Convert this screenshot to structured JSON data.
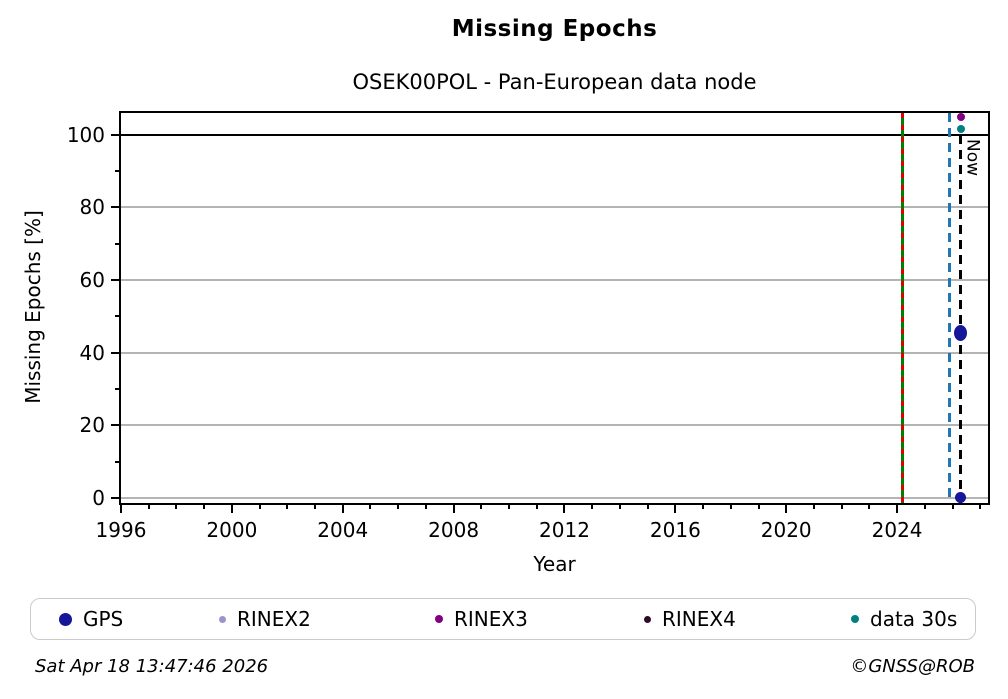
{
  "header": {
    "title": "Missing Epochs",
    "subtitle": "OSEK00POL - Pan-European data node"
  },
  "chart_data": {
    "type": "scatter",
    "title": "Missing Epochs",
    "subtitle": "OSEK00POL - Pan-European data node",
    "xlabel": "Year",
    "ylabel": "Missing Epochs [%]",
    "xlim": [
      1996,
      2027.28
    ],
    "ylim": [
      -1.4,
      106
    ],
    "x_major_ticks": [
      1996,
      2000,
      2004,
      2008,
      2012,
      2016,
      2020,
      2024
    ],
    "y_major_ticks": [
      0,
      20,
      40,
      60,
      80,
      100
    ],
    "y_minor_ticks": [
      10,
      30,
      50,
      70,
      90
    ],
    "grid": "horizontal-only",
    "grid_color": "#b4b4b4",
    "hline": {
      "y": 100,
      "color": "#000000"
    },
    "vlines": [
      {
        "x": 2024.2,
        "style": "solid-with-red-dashes",
        "color": "#008000",
        "overlay_color": "#dd0000",
        "label": ""
      },
      {
        "x": 2025.9,
        "style": "dashed",
        "color": "#1f77b4",
        "label": ""
      },
      {
        "x": 2026.3,
        "style": "dashed",
        "color": "#000000",
        "label": "Now",
        "from_y": 100
      }
    ],
    "now_label": "Now",
    "legend_position": "bottom",
    "series": [
      {
        "name": "GPS",
        "color": "#16169a",
        "legend_marker_size": 13,
        "points": [
          {
            "x": 2026.27,
            "y": 45.5,
            "w": 13,
            "h": 16
          },
          {
            "x": 2026.3,
            "y": 0,
            "w": 11,
            "h": 11
          }
        ]
      },
      {
        "name": "RINEX2",
        "color": "#9a93ce",
        "legend_marker_size": 7,
        "points": []
      },
      {
        "name": "RINEX3",
        "color": "#800080",
        "legend_marker_size": 8,
        "points": [
          {
            "x": 2026.3,
            "y": 105,
            "w": 8,
            "h": 8
          }
        ]
      },
      {
        "name": "RINEX4",
        "color": "#2b0d2b",
        "legend_marker_size": 7,
        "points": []
      },
      {
        "name": "data 30s",
        "color": "#008080",
        "legend_marker_size": 8,
        "points": [
          {
            "x": 2026.3,
            "y": 101.5,
            "w": 8,
            "h": 8
          }
        ]
      }
    ]
  },
  "footer": {
    "timestamp": "Sat Apr 18 13:47:46 2026",
    "credit": "©GNSS@ROB"
  }
}
